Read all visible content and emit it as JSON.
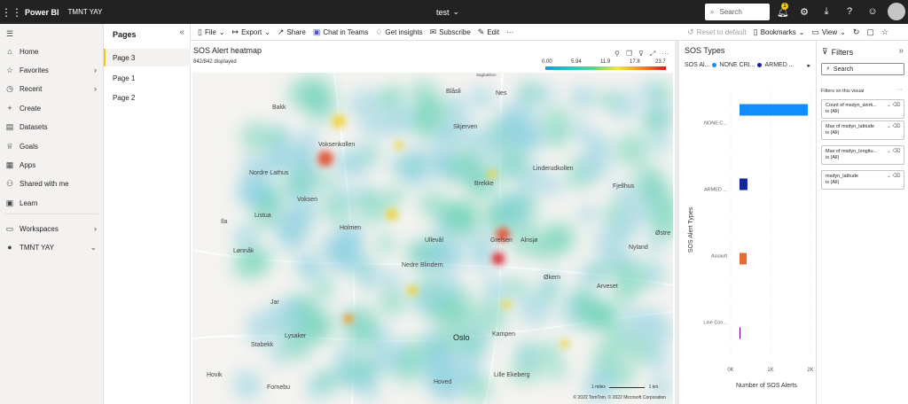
{
  "topbar": {
    "brand": "Power BI",
    "workspace": "TMNT YAY",
    "report_title": "test",
    "search_placeholder": "Search",
    "notification_count": "1"
  },
  "leftnav": {
    "items": [
      {
        "label": "Home",
        "icon": "home-icon"
      },
      {
        "label": "Favorites",
        "icon": "star-icon"
      },
      {
        "label": "Recent",
        "icon": "clock-icon"
      },
      {
        "label": "Create",
        "icon": "plus-icon"
      },
      {
        "label": "Datasets",
        "icon": "database-icon"
      },
      {
        "label": "Goals",
        "icon": "trophy-icon"
      },
      {
        "label": "Apps",
        "icon": "apps-icon"
      },
      {
        "label": "Shared with me",
        "icon": "shared-icon"
      },
      {
        "label": "Learn",
        "icon": "book-icon"
      },
      {
        "label": "Workspaces",
        "icon": "workspaces-icon"
      },
      {
        "label": "TMNT YAY",
        "icon": "workspace-icon"
      }
    ]
  },
  "pages": {
    "title": "Pages",
    "items": [
      "Page 3",
      "Page 1",
      "Page 2"
    ]
  },
  "toolbar": {
    "file": "File",
    "export": "Export",
    "share": "Share",
    "chat": "Chat in Teams",
    "insights": "Get insights",
    "subscribe": "Subscribe",
    "edit": "Edit",
    "reset": "Reset to default",
    "bookmarks": "Bookmarks",
    "view": "View"
  },
  "heatmap": {
    "title": "SOS Alert heatmap",
    "subtitle": "842/842 displayed",
    "legend_ticks": [
      "0.00",
      "5.94",
      "11.9",
      "17.8",
      "23.7"
    ],
    "places": [
      {
        "name": "Bakk"
      },
      {
        "name": "Voksenkollen"
      },
      {
        "name": "Nordre Lathus"
      },
      {
        "name": "Voksen"
      },
      {
        "name": "Ila"
      },
      {
        "name": "Listua"
      },
      {
        "name": "Holmen"
      },
      {
        "name": "Lønnåk"
      },
      {
        "name": "Jar"
      },
      {
        "name": "Lysaker"
      },
      {
        "name": "Stabekk"
      },
      {
        "name": "Hovik"
      },
      {
        "name": "Fornebu"
      },
      {
        "name": "Blåsli"
      },
      {
        "name": "Nes"
      },
      {
        "name": "Skjerven"
      },
      {
        "name": "Linderudkollen"
      },
      {
        "name": "Fjellhus"
      },
      {
        "name": "Ullevål"
      },
      {
        "name": "Nedre Blindern"
      },
      {
        "name": "Grefsen"
      },
      {
        "name": "Alnsjø"
      },
      {
        "name": "Nyland"
      },
      {
        "name": "Østre"
      },
      {
        "name": "Økern"
      },
      {
        "name": "Arveset"
      },
      {
        "name": "Oslo"
      },
      {
        "name": "Kampen"
      },
      {
        "name": "Lille Ekeberg"
      },
      {
        "name": "Hoved"
      },
      {
        "name": "Brekke"
      },
      {
        "name": "Sagbakken"
      }
    ],
    "attribution": "© 2022 TomTom, © 2022 Microsoft Corporation",
    "scale_labels": [
      "1 miles",
      "1 km"
    ]
  },
  "barchart": {
    "title": "SOS Types",
    "legend_label": "SOS Al...",
    "legend_items": [
      {
        "name": "NONE CRI...",
        "color": "#118dff"
      },
      {
        "name": "ARMED ...",
        "color": "#12239e"
      }
    ]
  },
  "chart_data": {
    "type": "bar",
    "orientation": "horizontal",
    "title": "SOS Types",
    "categories": [
      "NONE C...",
      "ARMED ...",
      "Assault",
      "Line Con..."
    ],
    "series": [
      {
        "name": "NONE CRI...",
        "values": [
          1900,
          0,
          0,
          0
        ],
        "color": "#118dff"
      },
      {
        "name": "ARMED ...",
        "values": [
          0,
          220,
          0,
          0
        ],
        "color": "#12239e"
      },
      {
        "name": "Assault",
        "values": [
          0,
          0,
          200,
          0
        ],
        "color": "#e66c37"
      },
      {
        "name": "Line Con...",
        "values": [
          0,
          0,
          0,
          20
        ],
        "color": "#6b007b"
      }
    ],
    "xlabel": "Number of SOS Alerts",
    "ylabel": "SOS Alert Types",
    "xticks": [
      "0K",
      "1K",
      "2K"
    ],
    "xlim": [
      0,
      2000
    ]
  },
  "filters": {
    "title": "Filters",
    "search_placeholder": "Search",
    "section": "Filters on this visual",
    "cards": [
      {
        "name": "Count of msdyn_work...",
        "value": "is (All)"
      },
      {
        "name": "Max of msdyn_latitude",
        "value": "is (All)"
      },
      {
        "name": "Max of msdyn_longitu...",
        "value": "is (All)"
      },
      {
        "name": "msdyn_latitude",
        "value": "is (All)"
      }
    ]
  }
}
